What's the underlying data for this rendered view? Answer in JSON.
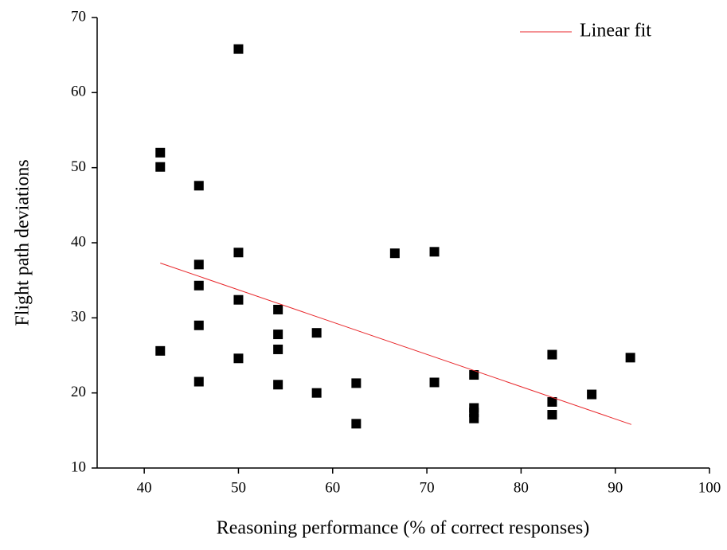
{
  "chart_data": {
    "type": "scatter",
    "xlabel": "Reasoning performance (% of correct responses)",
    "ylabel": "Flight path deviations",
    "xlim": [
      35,
      100
    ],
    "xticks": [
      40,
      50,
      60,
      70,
      80,
      90,
      100
    ],
    "ylim": [
      10,
      70
    ],
    "yticks": [
      10,
      20,
      30,
      40,
      50,
      60,
      70
    ],
    "color": "#000000",
    "x": [
      41.7,
      41.7,
      41.7,
      45.8,
      45.8,
      45.8,
      45.8,
      45.8,
      50,
      50,
      50,
      50,
      54.2,
      54.2,
      54.2,
      54.2,
      58.3,
      58.3,
      62.5,
      62.5,
      66.6,
      70.8,
      70.8,
      75,
      75,
      75,
      75,
      83.3,
      83.3,
      83.3,
      87.5,
      91.6
    ],
    "y": [
      52.0,
      50.1,
      25.6,
      47.6,
      37.1,
      34.3,
      29.0,
      21.5,
      65.8,
      38.7,
      32.4,
      24.6,
      31.1,
      27.8,
      25.8,
      21.1,
      28.0,
      20.0,
      21.3,
      15.9,
      38.6,
      38.8,
      21.4,
      22.4,
      18.0,
      17.4,
      16.6,
      25.1,
      18.8,
      17.1,
      19.8,
      24.7
    ],
    "fit": {
      "name": "Linear fit",
      "color": "#e8262a",
      "x": [
        41.7,
        91.7
      ],
      "y": [
        37.3,
        15.8
      ]
    },
    "legend": "top-right"
  }
}
